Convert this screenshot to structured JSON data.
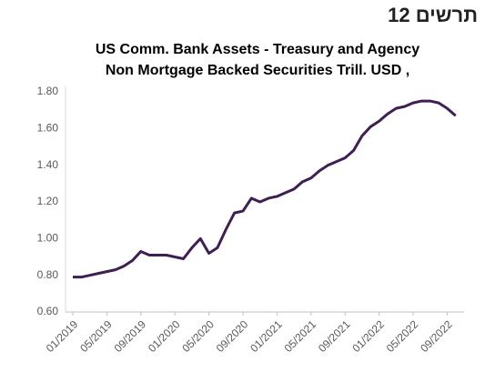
{
  "header": {
    "title": "תרשים 12"
  },
  "chart_data": {
    "type": "line",
    "title": [
      "US Comm. Bank Assets -  Treasury and Agency",
      "Non Mortgage Backed Securities Trill. USD ,"
    ],
    "categories": [
      "01/2019",
      null,
      null,
      null,
      "05/2019",
      null,
      null,
      null,
      "09/2019",
      null,
      null,
      null,
      "01/2020",
      null,
      null,
      null,
      "05/2020",
      null,
      null,
      null,
      "09/2020",
      null,
      null,
      null,
      "01/2021",
      null,
      null,
      null,
      "05/2021",
      null,
      null,
      null,
      "09/2021",
      null,
      null,
      null,
      "01/2022",
      null,
      null,
      null,
      "05/2022",
      null,
      null,
      null,
      "09/2022",
      null
    ],
    "series": [
      {
        "name": null,
        "color": "#3f1f52",
        "values": [
          0.79,
          0.79,
          0.8,
          0.81,
          0.82,
          0.83,
          0.85,
          0.88,
          0.93,
          0.91,
          0.91,
          0.91,
          0.9,
          0.89,
          0.95,
          1.0,
          0.92,
          0.95,
          1.05,
          1.14,
          1.15,
          1.22,
          1.2,
          1.22,
          1.23,
          1.25,
          1.27,
          1.31,
          1.33,
          1.37,
          1.4,
          1.42,
          1.44,
          1.48,
          1.56,
          1.61,
          1.64,
          1.68,
          1.71,
          1.72,
          1.74,
          1.75,
          1.75,
          1.74,
          1.71,
          1.67
        ]
      }
    ],
    "ylim": [
      0.6,
      1.8
    ],
    "yticks": [
      {
        "value": 0.6,
        "label": "0.60"
      },
      {
        "value": 0.8,
        "label": "0.80"
      },
      {
        "value": 1.0,
        "label": "1.00"
      },
      {
        "value": 1.2,
        "label": "1.20"
      },
      {
        "value": 1.4,
        "label": "1.40"
      },
      {
        "value": 1.6,
        "label": "1.60"
      },
      {
        "value": 1.8,
        "label": "1.80"
      }
    ],
    "grid": false
  }
}
